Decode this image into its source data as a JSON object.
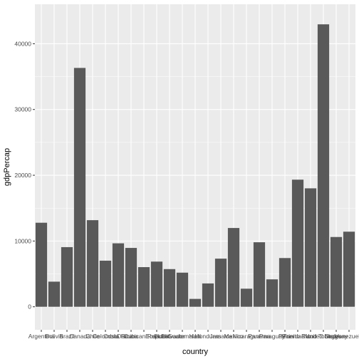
{
  "chart_data": {
    "type": "bar",
    "title": "",
    "xlabel": "country",
    "ylabel": "gdpPercap",
    "ylim": [
      -3500,
      46000
    ],
    "yticks": [
      0,
      10000,
      20000,
      30000,
      40000
    ],
    "grid": true,
    "categories": [
      "Argentina",
      "Bolivia",
      "Brazil",
      "Canada",
      "Chile",
      "Colombia",
      "Costa Rica",
      "Cuba",
      "Dominican Republic",
      "Ecuador",
      "El Salvador",
      "Guatemala",
      "Haiti",
      "Honduras",
      "Jamaica",
      "Mexico",
      "Nicaragua",
      "Panama",
      "Paraguay",
      "Peru",
      "Puerto Rico",
      "Trinidad and Tobago",
      "United States",
      "Uruguay",
      "Venezuela"
    ],
    "values": [
      12780,
      3820,
      9070,
      36320,
      13170,
      7010,
      9650,
      8950,
      6030,
      6870,
      5730,
      5190,
      1200,
      3550,
      7320,
      11980,
      2750,
      9810,
      4170,
      7410,
      19330,
      18010,
      42950,
      10610,
      11420
    ],
    "bar_color": "#595959",
    "panel_color": "#ebebeb",
    "grid_color": "#ffffff"
  }
}
